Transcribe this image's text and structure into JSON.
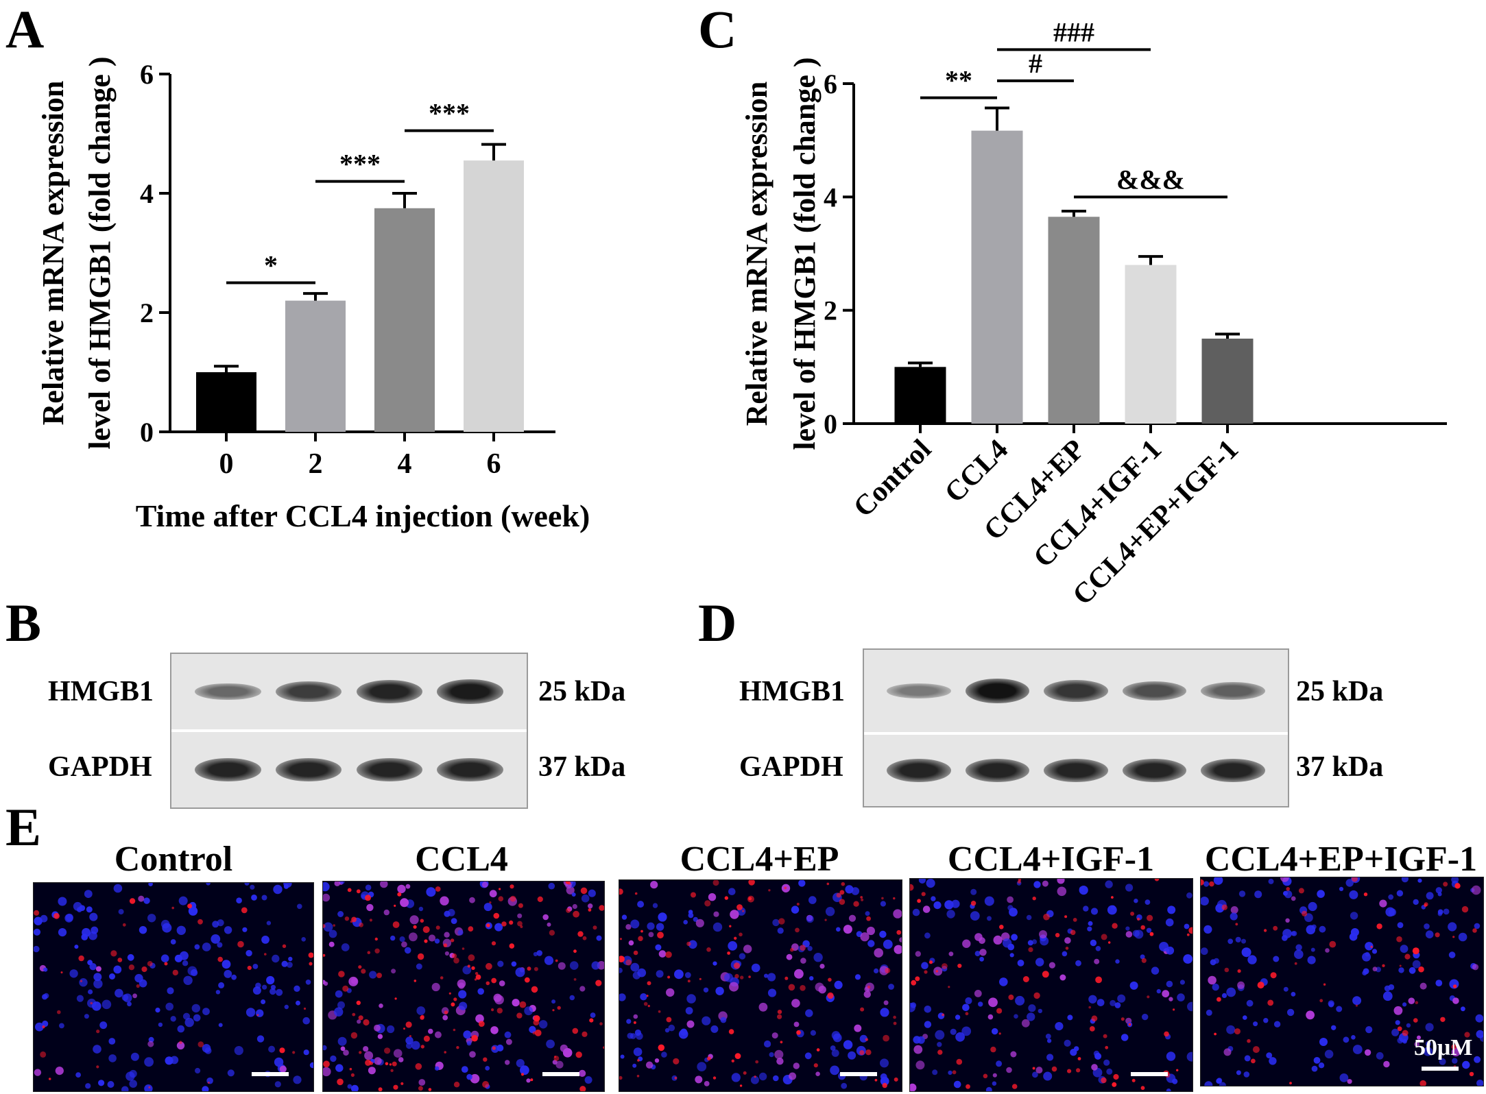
{
  "panels": {
    "a": "A",
    "b": "B",
    "c": "C",
    "d": "D",
    "e": "E"
  },
  "chart_data": [
    {
      "type": "bar",
      "panel": "A",
      "categories": [
        "0",
        "2",
        "4",
        "6"
      ],
      "values": [
        1.0,
        2.2,
        3.75,
        4.55
      ],
      "errors": [
        0.1,
        0.12,
        0.25,
        0.27
      ],
      "colors": [
        "#000000",
        "#a6a6ab",
        "#8a8a8a",
        "#d5d5d5"
      ],
      "ylabel_line1": "Relative mRNA expression",
      "ylabel_line2": "level of HMGB1 (fold change )",
      "xlabel": "Time after CCL4 injection (week)",
      "ylim": [
        0,
        6
      ],
      "yticks": [
        0,
        2,
        4,
        6
      ],
      "brackets": [
        {
          "from": 0,
          "to": 1,
          "y": 2.5,
          "label": "*"
        },
        {
          "from": 1,
          "to": 2,
          "y": 4.2,
          "label": "***"
        },
        {
          "from": 2,
          "to": 3,
          "y": 5.05,
          "label": "***"
        }
      ]
    },
    {
      "type": "bar",
      "panel": "C",
      "categories": [
        "Control",
        "CCL4",
        "CCL4+EP",
        "CCL4+IGF-1",
        "CCL4+EP+IGF-1"
      ],
      "values": [
        1.0,
        5.17,
        3.65,
        2.8,
        1.5
      ],
      "errors": [
        0.07,
        0.4,
        0.1,
        0.15,
        0.08
      ],
      "colors": [
        "#000000",
        "#a6a6ab",
        "#8a8a8a",
        "#dcdcdc",
        "#5f5f5f"
      ],
      "ylabel_line1": "Relative mRNA expression",
      "ylabel_line2": "level of HMGB1 (fold change )",
      "xlabel": "",
      "ylim": [
        0,
        6
      ],
      "yticks": [
        0,
        2,
        4,
        6
      ],
      "brackets": [
        {
          "from": 0,
          "to": 1,
          "y": 5.75,
          "label": "**"
        },
        {
          "from": 1,
          "to": 2,
          "y": 6.05,
          "label": "#"
        },
        {
          "from": 1,
          "to": 3,
          "y": 6.6,
          "label": "###"
        },
        {
          "from": 2,
          "to": 4,
          "y": 4.0,
          "label": "&&&"
        }
      ]
    }
  ],
  "blot_b": {
    "protein1": "HMGB1",
    "size1": "25 kDa",
    "protein2": "GAPDH",
    "size2": "37 kDa",
    "hmgb1_intensity": [
      0.45,
      0.7,
      0.85,
      0.9
    ],
    "gapdh_intensity": [
      0.85,
      0.85,
      0.85,
      0.85
    ]
  },
  "blot_d": {
    "protein1": "HMGB1",
    "size1": "25 kDa",
    "protein2": "GAPDH",
    "size2": "37 kDa",
    "hmgb1_intensity": [
      0.35,
      0.95,
      0.75,
      0.6,
      0.5
    ],
    "gapdh_intensity": [
      0.85,
      0.85,
      0.85,
      0.85,
      0.85
    ]
  },
  "if_panel": {
    "titles": [
      "Control",
      "CCL4",
      "CCL4+EP",
      "CCL4+IGF-1",
      "CCL4+EP+IGF-1"
    ],
    "red_level": [
      0.15,
      0.9,
      0.55,
      0.4,
      0.25
    ],
    "scale_label": "50μM"
  }
}
